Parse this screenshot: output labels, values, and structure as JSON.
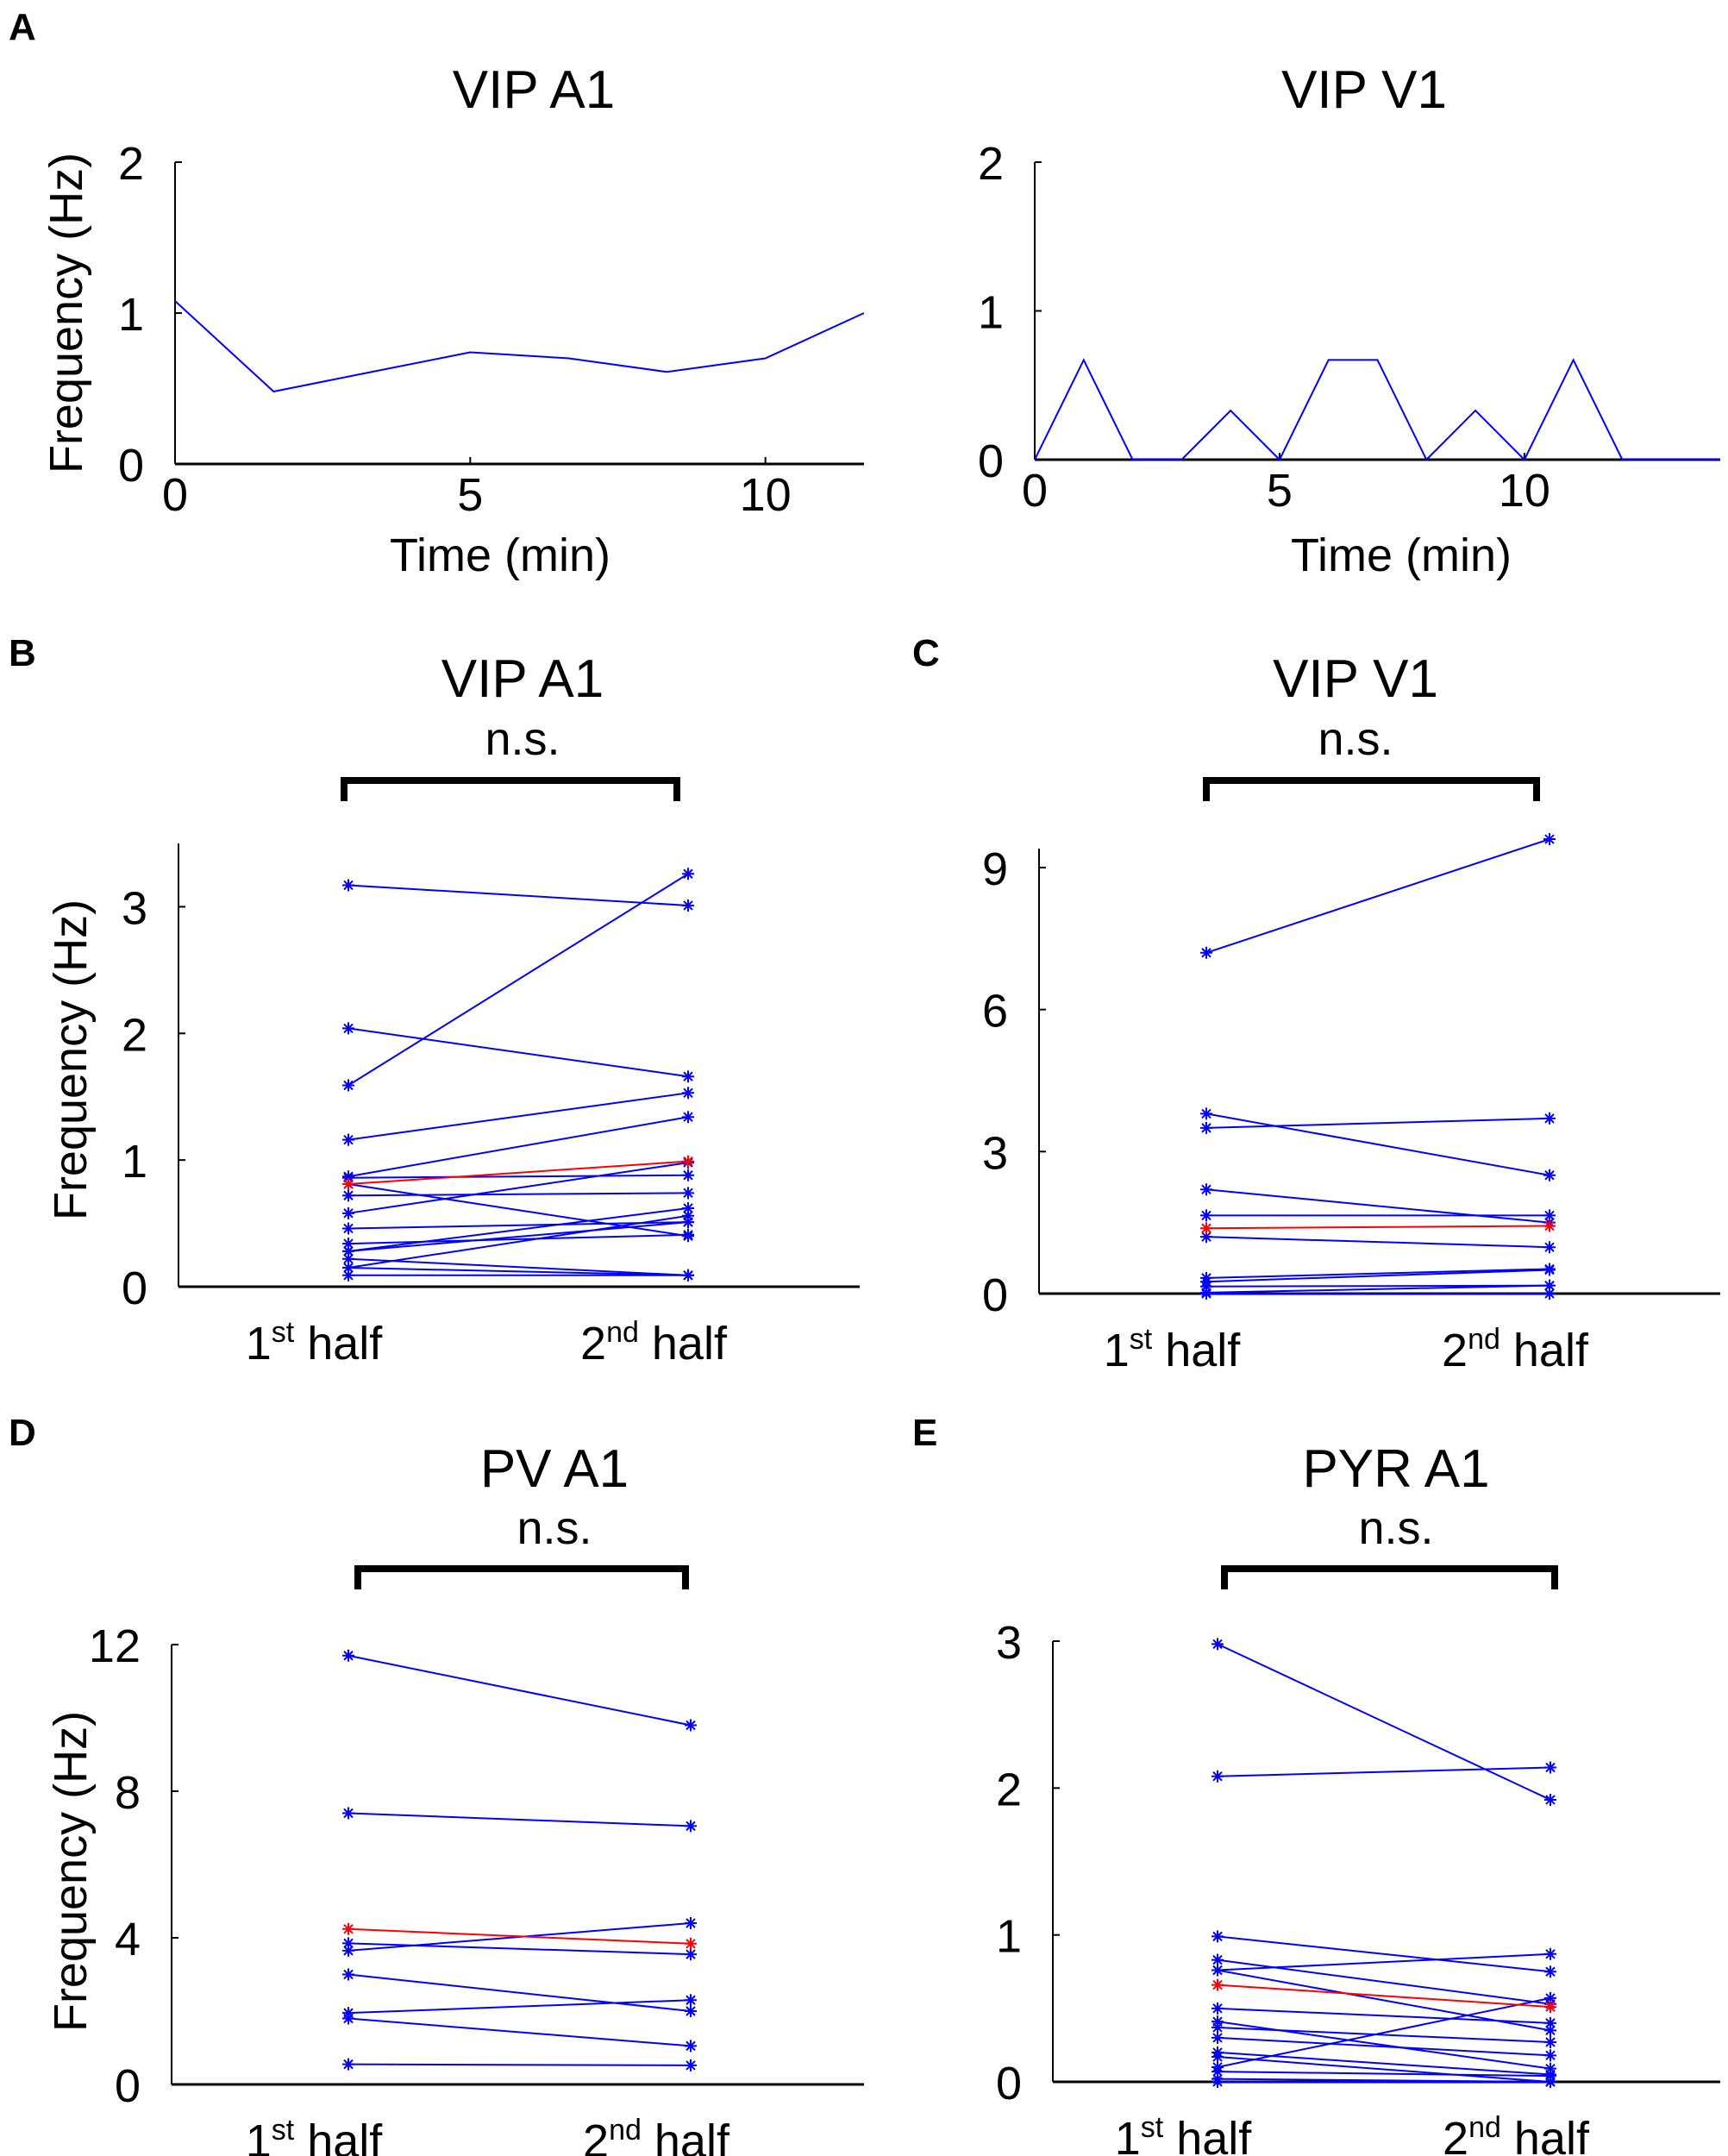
{
  "panel_letters": [
    "A",
    "B",
    "C",
    "D",
    "E"
  ],
  "colors": {
    "series": "#0000ff",
    "highlight": "#ff0000",
    "axis": "#000000"
  },
  "chart_data": [
    {
      "type": "line",
      "panel": "A",
      "title": "VIP A1",
      "xlabel": "Time (min)",
      "ylabel": "Frequency (Hz)",
      "xlim": [
        0,
        11.67
      ],
      "ylim": [
        0,
        2
      ],
      "xticks": [
        0,
        5,
        10
      ],
      "yticks": [
        0,
        1,
        2
      ],
      "grid": false,
      "x": [
        0,
        1.67,
        3.33,
        5,
        6.67,
        8.33,
        10,
        11.67
      ],
      "y": [
        1.08,
        0.48,
        0.61,
        0.74,
        0.7,
        0.61,
        0.7,
        1.0
      ]
    },
    {
      "type": "line",
      "panel": "A",
      "title": "VIP V1",
      "xlabel": "Time (min)",
      "ylabel": "",
      "xlim": [
        0,
        14
      ],
      "ylim": [
        0,
        2
      ],
      "xticks": [
        0,
        5,
        10
      ],
      "yticks": [
        0,
        1,
        2
      ],
      "grid": false,
      "x": [
        0,
        1,
        2,
        3,
        4,
        5,
        6,
        7,
        8,
        9,
        10,
        11,
        12,
        13,
        14
      ],
      "y": [
        0,
        0.67,
        0,
        0,
        0.33,
        0,
        0.67,
        0.67,
        0,
        0.33,
        0,
        0.67,
        0,
        0,
        0
      ]
    },
    {
      "type": "line",
      "panel": "B",
      "title": "VIP A1",
      "annotation": "n.s.",
      "ylabel": "Frequency (Hz)",
      "ylim": [
        0,
        3.5
      ],
      "yticks": [
        0,
        1,
        2,
        3
      ],
      "grid": false,
      "categories": [
        [
          "1",
          "st",
          " half"
        ],
        [
          "2",
          "nd",
          " half"
        ]
      ],
      "pairs": [
        [
          3.17,
          3.01
        ],
        [
          1.59,
          3.26
        ],
        [
          2.04,
          1.66
        ],
        [
          1.16,
          1.53
        ],
        [
          0.87,
          1.34
        ],
        [
          0.86,
          0.88
        ],
        [
          0.81,
          0.4
        ],
        [
          0.72,
          0.74
        ],
        [
          0.58,
          0.98
        ],
        [
          0.46,
          0.51
        ],
        [
          0.34,
          0.41
        ],
        [
          0.28,
          0.62
        ],
        [
          0.28,
          0.51
        ],
        [
          0.22,
          0.09
        ],
        [
          0.15,
          0.56
        ],
        [
          0.15,
          0.09
        ],
        [
          0.09,
          0.09
        ]
      ],
      "highlight": [
        0.81,
        0.99
      ]
    },
    {
      "type": "line",
      "panel": "C",
      "title": "VIP V1",
      "annotation": "n.s.",
      "ylabel": "",
      "ylim": [
        0,
        9.4
      ],
      "yticks": [
        0,
        3,
        6,
        9
      ],
      "grid": false,
      "categories": [
        [
          "1",
          "st",
          " half"
        ],
        [
          "2",
          "nd",
          " half"
        ]
      ],
      "pairs": [
        [
          7.2,
          9.6
        ],
        [
          3.8,
          2.5
        ],
        [
          3.5,
          3.7
        ],
        [
          2.2,
          1.5
        ],
        [
          1.65,
          1.65
        ],
        [
          1.2,
          0.98
        ],
        [
          0.33,
          0.52
        ],
        [
          0.25,
          0.5
        ],
        [
          0.15,
          0.17
        ],
        [
          0.02,
          0.17
        ],
        [
          0.0,
          0.0
        ]
      ],
      "highlight": [
        1.38,
        1.43
      ]
    },
    {
      "type": "line",
      "panel": "D",
      "title": "PV A1",
      "annotation": "n.s.",
      "ylabel": "Frequency (Hz)",
      "ylim": [
        0,
        12
      ],
      "yticks": [
        0,
        4,
        8,
        12
      ],
      "grid": false,
      "categories": [
        [
          "1",
          "st",
          " half"
        ],
        [
          "2",
          "nd",
          " half"
        ]
      ],
      "pairs": [
        [
          11.7,
          9.8
        ],
        [
          7.4,
          7.05
        ],
        [
          3.85,
          3.55
        ],
        [
          3.65,
          4.4
        ],
        [
          3.0,
          2.0
        ],
        [
          1.95,
          2.3
        ],
        [
          1.8,
          1.05
        ],
        [
          0.55,
          0.52
        ]
      ],
      "highlight": [
        4.24,
        3.84
      ]
    },
    {
      "type": "line",
      "panel": "E",
      "title": "PYR A1",
      "annotation": "n.s.",
      "ylabel": "",
      "ylim": [
        0,
        3
      ],
      "yticks": [
        0,
        1,
        2,
        3
      ],
      "grid": false,
      "categories": [
        [
          "1",
          "st",
          " half"
        ],
        [
          "2",
          "nd",
          " half"
        ]
      ],
      "pairs": [
        [
          2.98,
          1.92
        ],
        [
          2.08,
          2.14
        ],
        [
          0.99,
          0.75
        ],
        [
          0.83,
          0.53
        ],
        [
          0.76,
          0.87
        ],
        [
          0.76,
          0.35
        ],
        [
          0.5,
          0.4
        ],
        [
          0.41,
          0.09
        ],
        [
          0.37,
          0.27
        ],
        [
          0.3,
          0.18
        ],
        [
          0.2,
          0.05
        ],
        [
          0.17,
          0.0
        ],
        [
          0.1,
          0.57
        ],
        [
          0.07,
          0.04
        ],
        [
          0.02,
          0.0
        ],
        [
          0.0,
          0.0
        ]
      ],
      "highlight": [
        0.66,
        0.51
      ]
    }
  ]
}
